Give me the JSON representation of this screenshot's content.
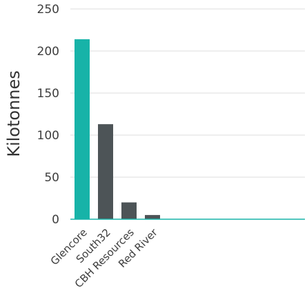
{
  "chart_data": {
    "type": "bar",
    "categories": [
      "Glencore",
      "South32",
      "CBH Resources",
      "Red River"
    ],
    "values": [
      214,
      113,
      20,
      5
    ],
    "ylabel": "Kilotonnes",
    "ylim": [
      0,
      250
    ],
    "yticks": [
      0,
      50,
      100,
      150,
      200,
      250
    ],
    "grid": true,
    "colors": {
      "highlight": "#17b3a8",
      "default": "#4d5457",
      "grid": "#dcdcdc",
      "baseline": "#17b3a8"
    }
  }
}
